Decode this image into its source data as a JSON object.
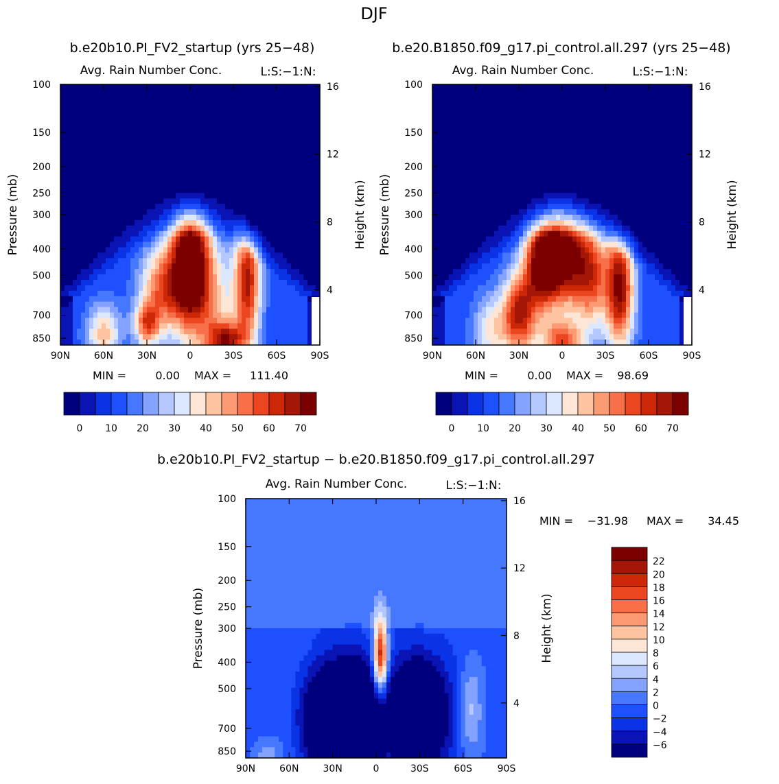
{
  "figure": {
    "season": "DJF",
    "diff_title": "b.e20b10.PI_FV2_startup − b.e20.B1850.f09_g17.pi_control.all.297"
  },
  "colors": {
    "seq": [
      "#00007f",
      "#0a14b4",
      "#0a32e6",
      "#1e50ff",
      "#4678ff",
      "#84a2ff",
      "#b4c8ff",
      "#dce8ff",
      "#fee6d6",
      "#fec4a2",
      "#fc9a74",
      "#f8704a",
      "#ec4620",
      "#cc2808",
      "#a41606",
      "#7c0000"
    ],
    "diff": [
      "#00007f",
      "#0a14b4",
      "#0a32e6",
      "#1e50ff",
      "#4678ff",
      "#84a2ff",
      "#b4c8ff",
      "#dce8ff",
      "#fee6d6",
      "#fec4a2",
      "#fc9a74",
      "#f8704a",
      "#ec4620",
      "#cc2808",
      "#a41606",
      "#7c0000"
    ]
  },
  "chart_data": [
    {
      "type": "contour",
      "id": "panel-a",
      "model_title": "b.e20b10.PI_FV2_startup (yrs 25−48)",
      "title": "Avg. Rain Number Conc.",
      "units": "L:S:−1:N:",
      "xlabel": "",
      "ylabel": "Pressure (mb)",
      "ylabel_right": "Height (km)",
      "x_ticks": [
        "90N",
        "60N",
        "30N",
        "0",
        "30S",
        "60S",
        "90S"
      ],
      "y_ticks": [
        "100",
        "150",
        "200",
        "250",
        "300",
        "400",
        "500",
        "700",
        "850"
      ],
      "y_ticks_right": [
        "16",
        "12",
        "8",
        "4"
      ],
      "min_label": "MIN =",
      "min_value": "0.00",
      "max_label": "MAX =",
      "max_value": "111.40",
      "colorbar_labels": [
        "0",
        "10",
        "20",
        "30",
        "40",
        "50",
        "60",
        "70"
      ],
      "blobs": [
        {
          "lat": 0,
          "p": 440,
          "amp": 1.0,
          "w": 14,
          "h": 0.55
        },
        {
          "lat": -40,
          "p": 520,
          "amp": 0.72,
          "w": 9,
          "h": 0.55
        },
        {
          "lat": -25,
          "p": 870,
          "amp": 0.65,
          "w": 13,
          "h": 0.16
        },
        {
          "lat": 20,
          "p": 560,
          "amp": 0.55,
          "w": 15,
          "h": 0.35
        },
        {
          "lat": 30,
          "p": 760,
          "amp": 0.55,
          "w": 9,
          "h": 0.18
        },
        {
          "lat": 60,
          "p": 820,
          "amp": 0.45,
          "w": 12,
          "h": 0.25
        },
        {
          "lat": -15,
          "p": 650,
          "amp": 0.35,
          "w": 20,
          "h": 0.5
        }
      ]
    },
    {
      "type": "contour",
      "id": "panel-b",
      "model_title": "b.e20.B1850.f09_g17.pi_control.all.297 (yrs 25−48)",
      "title": "Avg. Rain Number Conc.",
      "units": "L:S:−1:N:",
      "xlabel": "",
      "ylabel": "Pressure (mb)",
      "ylabel_right": "Height (km)",
      "x_ticks": [
        "90N",
        "60N",
        "30N",
        "0",
        "30S",
        "60S",
        "90S"
      ],
      "y_ticks": [
        "100",
        "150",
        "200",
        "250",
        "300",
        "400",
        "500",
        "700",
        "850"
      ],
      "y_ticks_right": [
        "16",
        "12",
        "8",
        "4"
      ],
      "min_label": "MIN =",
      "min_value": "0.00",
      "max_label": "MAX =",
      "max_value": "98.69",
      "colorbar_labels": [
        "0",
        "10",
        "20",
        "30",
        "40",
        "50",
        "60",
        "70"
      ],
      "blobs": [
        {
          "lat": 0,
          "p": 420,
          "amp": 0.9,
          "w": 16,
          "h": 0.45
        },
        {
          "lat": -40,
          "p": 560,
          "amp": 0.85,
          "w": 10,
          "h": 0.5
        },
        {
          "lat": 30,
          "p": 700,
          "amp": 0.75,
          "w": 12,
          "h": 0.35
        },
        {
          "lat": 15,
          "p": 450,
          "amp": 0.7,
          "w": 12,
          "h": 0.4
        },
        {
          "lat": -20,
          "p": 500,
          "amp": 0.6,
          "w": 12,
          "h": 0.45
        },
        {
          "lat": 0,
          "p": 870,
          "amp": 0.6,
          "w": 14,
          "h": 0.16
        },
        {
          "lat": 50,
          "p": 800,
          "amp": 0.35,
          "w": 12,
          "h": 0.3
        }
      ]
    },
    {
      "type": "contour",
      "id": "panel-diff",
      "title": "Avg. Rain Number Conc.",
      "units": "L:S:−1:N:",
      "xlabel": "",
      "ylabel": "Pressure (mb)",
      "ylabel_right": "Height (km)",
      "x_ticks": [
        "90N",
        "60N",
        "30N",
        "0",
        "30S",
        "60S",
        "90S"
      ],
      "y_ticks": [
        "100",
        "150",
        "200",
        "250",
        "300",
        "400",
        "500",
        "700",
        "850"
      ],
      "y_ticks_right": [
        "16",
        "12",
        "8",
        "4"
      ],
      "min_label": "MIN =",
      "min_value": "−31.98",
      "max_label": "MAX =",
      "max_value": "34.45",
      "colorbar_labels": [
        "22",
        "20",
        "18",
        "16",
        "14",
        "12",
        "10",
        "8",
        "6",
        "4",
        "2",
        "0",
        "−2",
        "−4",
        "−6"
      ],
      "blobs": [
        {
          "lat": -3,
          "p": 380,
          "amp": 1.0,
          "w": 5,
          "h": 0.32
        },
        {
          "lat": 15,
          "p": 620,
          "amp": -0.8,
          "w": 20,
          "h": 0.45
        },
        {
          "lat": -30,
          "p": 620,
          "amp": -0.75,
          "w": 18,
          "h": 0.45
        },
        {
          "lat": 40,
          "p": 650,
          "amp": -0.4,
          "w": 14,
          "h": 0.4
        },
        {
          "lat": -65,
          "p": 600,
          "amp": 0.25,
          "w": 8,
          "h": 0.4
        },
        {
          "lat": 75,
          "p": 870,
          "amp": 0.2,
          "w": 10,
          "h": 0.15
        }
      ]
    }
  ]
}
